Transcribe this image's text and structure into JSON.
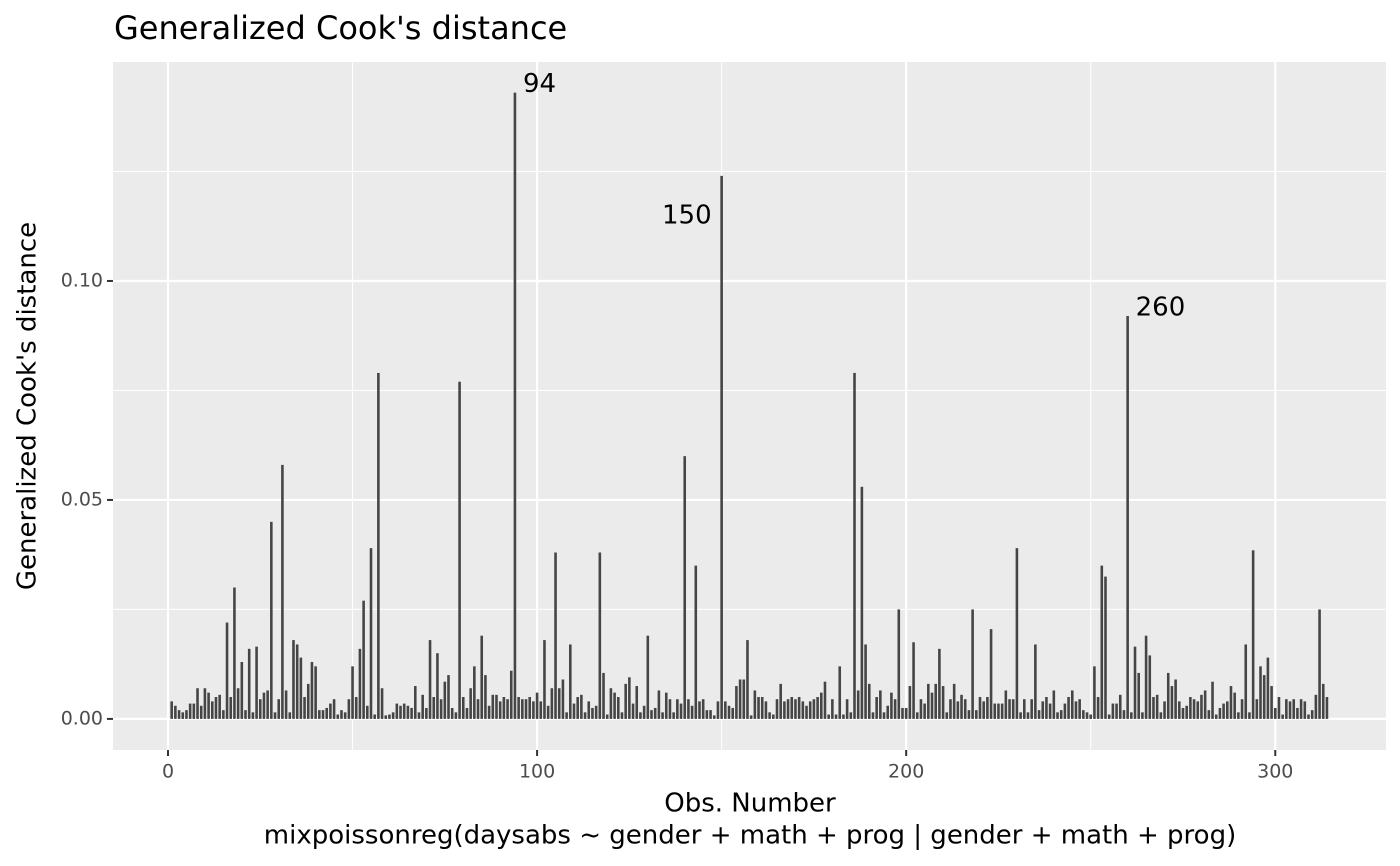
{
  "chart_data": {
    "type": "bar",
    "title": "Generalized Cook's distance",
    "xlabel": "Obs. Number",
    "caption": "mixpoissonreg(daysabs ~ gender + math + prog | gender + math + prog)",
    "ylabel": "Generalized Cook's distance",
    "color": "#454545",
    "grid": true,
    "xlim": [
      -14.9,
      330
    ],
    "ylim": [
      -0.0071,
      0.15
    ],
    "xticks": [
      0,
      100,
      200,
      300
    ],
    "xticks_minor": [
      50,
      150,
      250
    ],
    "yticks": [
      {
        "value": 0,
        "label": "0.00"
      },
      {
        "value": 0.05,
        "label": "0.05"
      },
      {
        "value": 0.1,
        "label": "0.10"
      }
    ],
    "yticks_minor": [
      0.025,
      0.075,
      0.125
    ],
    "annotations": [
      {
        "label": "94",
        "x": 94
      },
      {
        "label": "150",
        "x": 150
      },
      {
        "label": "260",
        "x": 260
      }
    ],
    "x": [
      1,
      2,
      3,
      4,
      5,
      6,
      7,
      8,
      9,
      10,
      11,
      12,
      13,
      14,
      15,
      16,
      17,
      18,
      19,
      20,
      21,
      22,
      23,
      24,
      25,
      26,
      27,
      28,
      29,
      30,
      31,
      32,
      33,
      34,
      35,
      36,
      37,
      38,
      39,
      40,
      41,
      42,
      43,
      44,
      45,
      46,
      47,
      48,
      49,
      50,
      51,
      52,
      53,
      54,
      55,
      56,
      57,
      58,
      59,
      60,
      61,
      62,
      63,
      64,
      65,
      66,
      67,
      68,
      69,
      70,
      71,
      72,
      73,
      74,
      75,
      76,
      77,
      78,
      79,
      80,
      81,
      82,
      83,
      84,
      85,
      86,
      87,
      88,
      89,
      90,
      91,
      92,
      93,
      94,
      95,
      96,
      97,
      98,
      99,
      100,
      101,
      102,
      103,
      104,
      105,
      106,
      107,
      108,
      109,
      110,
      111,
      112,
      113,
      114,
      115,
      116,
      117,
      118,
      119,
      120,
      121,
      122,
      123,
      124,
      125,
      126,
      127,
      128,
      129,
      130,
      131,
      132,
      133,
      134,
      135,
      136,
      137,
      138,
      139,
      140,
      141,
      142,
      143,
      144,
      145,
      146,
      147,
      148,
      149,
      150,
      151,
      152,
      153,
      154,
      155,
      156,
      157,
      158,
      159,
      160,
      161,
      162,
      163,
      164,
      165,
      166,
      167,
      168,
      169,
      170,
      171,
      172,
      173,
      174,
      175,
      176,
      177,
      178,
      179,
      180,
      181,
      182,
      183,
      184,
      185,
      186,
      187,
      188,
      189,
      190,
      191,
      192,
      193,
      194,
      195,
      196,
      197,
      198,
      199,
      200,
      201,
      202,
      203,
      204,
      205,
      206,
      207,
      208,
      209,
      210,
      211,
      212,
      213,
      214,
      215,
      216,
      217,
      218,
      219,
      220,
      221,
      222,
      223,
      224,
      225,
      226,
      227,
      228,
      229,
      230,
      231,
      232,
      233,
      234,
      235,
      236,
      237,
      238,
      239,
      240,
      241,
      242,
      243,
      244,
      245,
      246,
      247,
      248,
      249,
      250,
      251,
      252,
      253,
      254,
      255,
      256,
      257,
      258,
      259,
      260,
      261,
      262,
      263,
      264,
      265,
      266,
      267,
      268,
      269,
      270,
      271,
      272,
      273,
      274,
      275,
      276,
      277,
      278,
      279,
      280,
      281,
      282,
      283,
      284,
      285,
      286,
      287,
      288,
      289,
      290,
      291,
      292,
      293,
      294,
      295,
      296,
      297,
      298,
      299,
      300,
      301,
      302,
      303,
      304,
      305,
      306,
      307,
      308,
      309,
      310,
      311,
      312,
      313,
      314
    ],
    "values": [
      0.004,
      0.003,
      0.002,
      0.0015,
      0.002,
      0.0035,
      0.0035,
      0.007,
      0.003,
      0.007,
      0.006,
      0.004,
      0.005,
      0.0055,
      0.002,
      0.022,
      0.005,
      0.03,
      0.007,
      0.013,
      0.002,
      0.016,
      0.0015,
      0.0165,
      0.0045,
      0.006,
      0.0065,
      0.045,
      0.0015,
      0.0045,
      0.058,
      0.0065,
      0.0015,
      0.018,
      0.017,
      0.014,
      0.005,
      0.008,
      0.013,
      0.012,
      0.002,
      0.002,
      0.0025,
      0.0035,
      0.0045,
      0.001,
      0.002,
      0.0015,
      0.0045,
      0.012,
      0.005,
      0.016,
      0.027,
      0.003,
      0.039,
      0.001,
      0.079,
      0.007,
      0.0008,
      0.001,
      0.0015,
      0.0035,
      0.003,
      0.0035,
      0.003,
      0.0025,
      0.0075,
      0.0015,
      0.0055,
      0.0025,
      0.018,
      0.005,
      0.015,
      0.0045,
      0.0085,
      0.01,
      0.0025,
      0.0015,
      0.077,
      0.005,
      0.0025,
      0.007,
      0.012,
      0.0045,
      0.019,
      0.01,
      0.003,
      0.0055,
      0.0055,
      0.004,
      0.005,
      0.0045,
      0.011,
      0.143,
      0.005,
      0.0045,
      0.0045,
      0.005,
      0.004,
      0.006,
      0.004,
      0.018,
      0.003,
      0.007,
      0.038,
      0.007,
      0.009,
      0.0015,
      0.017,
      0.0035,
      0.005,
      0.0055,
      0.0015,
      0.004,
      0.0025,
      0.003,
      0.038,
      0.0105,
      0.001,
      0.007,
      0.006,
      0.005,
      0.0015,
      0.008,
      0.0095,
      0.0035,
      0.0075,
      0.0015,
      0.003,
      0.019,
      0.002,
      0.0025,
      0.0065,
      0.0015,
      0.006,
      0.0045,
      0.0015,
      0.0045,
      0.0035,
      0.06,
      0.0045,
      0.003,
      0.035,
      0.004,
      0.0045,
      0.002,
      0.002,
      0.0008,
      0.004,
      0.124,
      0.004,
      0.003,
      0.0025,
      0.0075,
      0.009,
      0.009,
      0.018,
      0.0008,
      0.0065,
      0.005,
      0.005,
      0.004,
      0.0015,
      0.001,
      0.0045,
      0.008,
      0.004,
      0.0045,
      0.005,
      0.0045,
      0.005,
      0.004,
      0.003,
      0.004,
      0.0045,
      0.005,
      0.006,
      0.0085,
      0.001,
      0.0045,
      0.001,
      0.012,
      0.001,
      0.0045,
      0.0015,
      0.079,
      0.0065,
      0.053,
      0.017,
      0.008,
      0.0015,
      0.005,
      0.0065,
      0.0015,
      0.003,
      0.006,
      0.0045,
      0.025,
      0.0025,
      0.0025,
      0.0075,
      0.0175,
      0.0015,
      0.0045,
      0.0035,
      0.008,
      0.006,
      0.008,
      0.016,
      0.0075,
      0.0015,
      0.0045,
      0.008,
      0.004,
      0.0055,
      0.0045,
      0.002,
      0.025,
      0.002,
      0.005,
      0.004,
      0.005,
      0.0205,
      0.0035,
      0.0035,
      0.0035,
      0.0065,
      0.0045,
      0.0045,
      0.039,
      0.0015,
      0.0045,
      0.0015,
      0.0045,
      0.017,
      0.002,
      0.004,
      0.005,
      0.0035,
      0.0065,
      0.0015,
      0.002,
      0.0035,
      0.005,
      0.0065,
      0.004,
      0.0045,
      0.002,
      0.0015,
      0.001,
      0.012,
      0.005,
      0.035,
      0.0325,
      0.001,
      0.0035,
      0.0035,
      0.0055,
      0.002,
      0.092,
      0.0015,
      0.0165,
      0.0105,
      0.0015,
      0.019,
      0.0145,
      0.005,
      0.0055,
      0.0015,
      0.004,
      0.0105,
      0.0075,
      0.009,
      0.004,
      0.0025,
      0.003,
      0.005,
      0.0045,
      0.004,
      0.0055,
      0.0065,
      0.002,
      0.0085,
      0.001,
      0.0025,
      0.0035,
      0.004,
      0.0075,
      0.006,
      0.0015,
      0.0045,
      0.017,
      0.0015,
      0.0385,
      0.0045,
      0.012,
      0.01,
      0.014,
      0.0075,
      0.0025,
      0.005,
      0.001,
      0.0045,
      0.004,
      0.0045,
      0.0025,
      0.0045,
      0.004,
      0.001,
      0.002,
      0.0055,
      0.025,
      0.008,
      0.005
    ]
  }
}
